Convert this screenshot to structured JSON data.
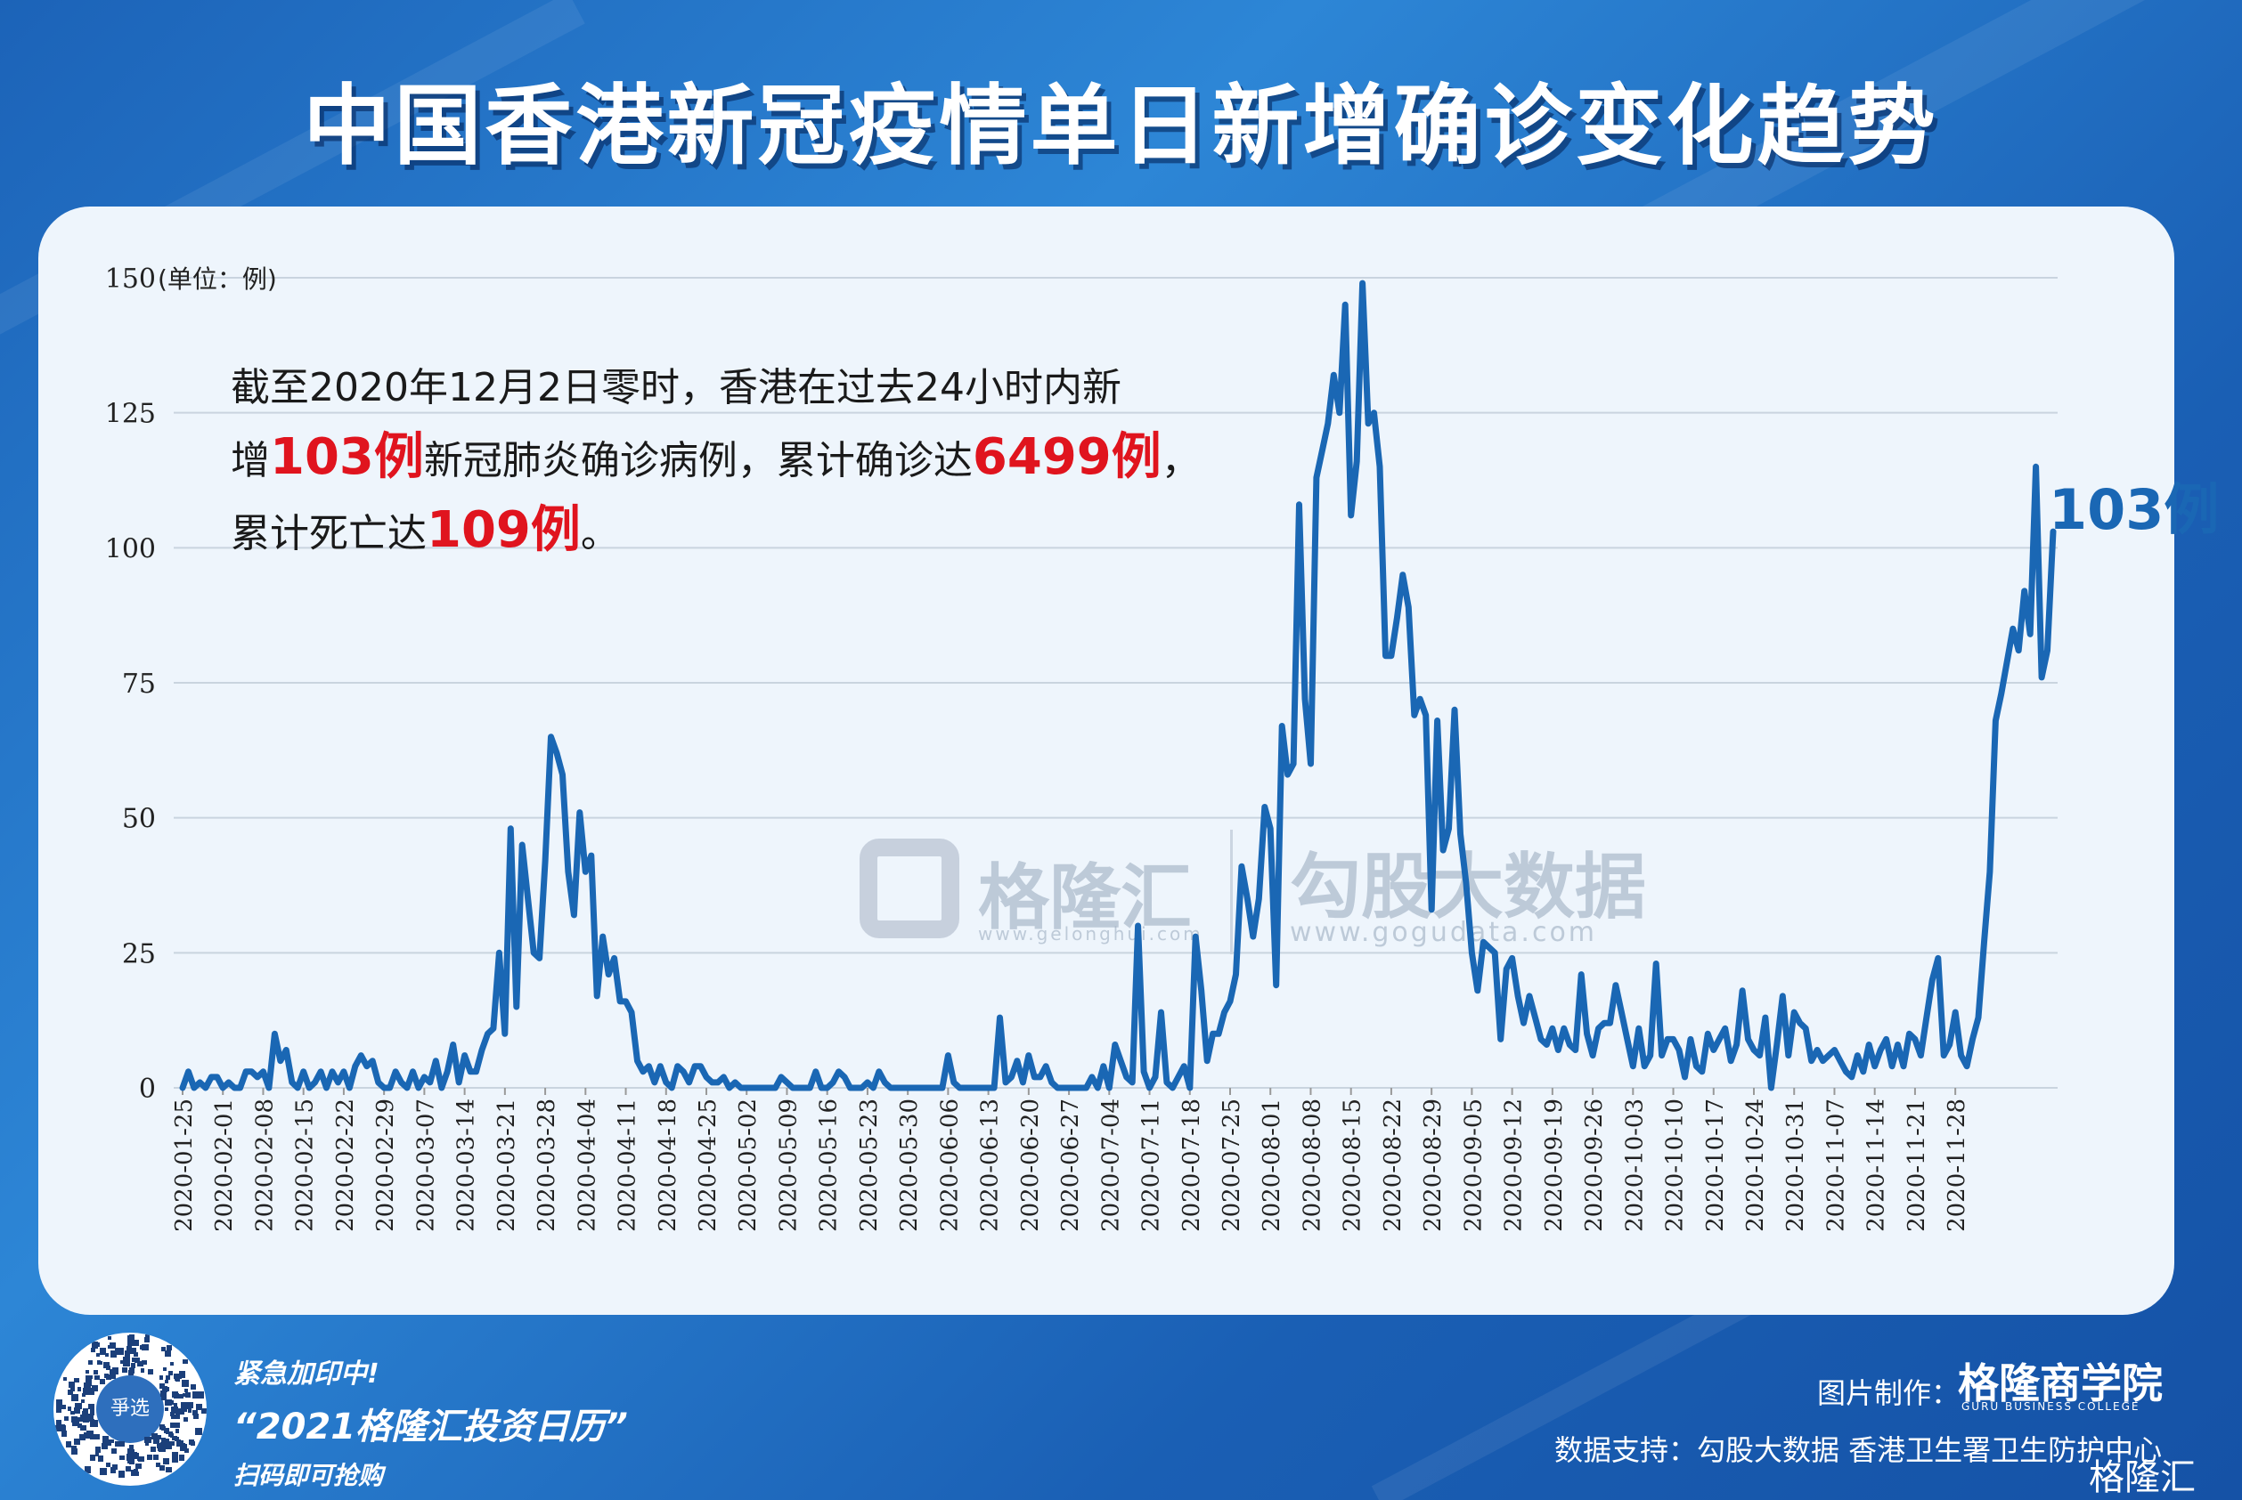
{
  "title": "中国香港新冠疫情单日新增确诊变化趋势",
  "unit_label": "(单位：例)",
  "annotation": {
    "line1": "截至2020年12月2日零时，香港在过去24小时内新",
    "line2_pre": "增",
    "line2_red1": "103例",
    "line2_mid": "新冠肺炎确诊病例，累计确诊达",
    "line2_red2": "6499例",
    "line2_post": "，",
    "line3_pre": "累计死亡达",
    "line3_red": "109例",
    "line3_post": "。"
  },
  "end_label": "103例",
  "watermark": {
    "brand1": "格隆汇",
    "brand1_url": "www.gelonghui.com",
    "brand2": "勾股大数据",
    "brand2_url": "www.gogudata.com"
  },
  "footer": {
    "promo_line1": "紧急加印中!",
    "promo_line2": "“2021格隆汇投资日历”",
    "promo_line3": "扫码即可抢购",
    "qr_center": "爭选",
    "credit_label": "图片制作：",
    "credit_logo": "格隆商学院",
    "credit_sub": "GURU BUSINESS COLLEGE",
    "source": "数据支持：勾股大数据  香港卫生署卫生防护中心",
    "corner_logo": "格隆汇"
  },
  "colors": {
    "line": "#1a67b4",
    "red": "#e0141e",
    "background": "#2d86d6",
    "panel": "#eef5fc"
  },
  "chart_data": {
    "type": "line",
    "title": "中国香港新冠疫情单日新增确诊变化趋势",
    "ylabel": "(单位：例)",
    "ylim": [
      0,
      150
    ],
    "yticks": [
      0,
      25,
      50,
      75,
      100,
      125,
      150
    ],
    "grid": true,
    "x_start": "2020-01-25",
    "x_end": "2020-12-01",
    "xtick_labels": [
      "2020-01-25",
      "2020-02-01",
      "2020-02-08",
      "2020-02-15",
      "2020-02-22",
      "2020-02-29",
      "2020-03-07",
      "2020-03-14",
      "2020-03-21",
      "2020-03-28",
      "2020-04-04",
      "2020-04-11",
      "2020-04-18",
      "2020-04-25",
      "2020-05-02",
      "2020-05-09",
      "2020-05-16",
      "2020-05-23",
      "2020-05-30",
      "2020-06-06",
      "2020-06-13",
      "2020-06-20",
      "2020-06-27",
      "2020-07-04",
      "2020-07-11",
      "2020-07-18",
      "2020-07-25",
      "2020-08-01",
      "2020-08-08",
      "2020-08-15",
      "2020-08-22",
      "2020-08-29",
      "2020-09-05",
      "2020-09-12",
      "2020-09-19",
      "2020-09-26",
      "2020-10-03",
      "2020-10-10",
      "2020-10-17",
      "2020-10-24",
      "2020-10-31",
      "2020-11-07",
      "2020-11-14",
      "2020-11-21",
      "2020-11-28"
    ],
    "series": [
      {
        "values": [
          0,
          3,
          0,
          1,
          0,
          2,
          2,
          0,
          1,
          0,
          0,
          3,
          3,
          2,
          3,
          0,
          10,
          5,
          7,
          1,
          0,
          3,
          0,
          1,
          3,
          0,
          3,
          1,
          3,
          0,
          4,
          6,
          4,
          5,
          1,
          0,
          0,
          3,
          1,
          0,
          3,
          0,
          2,
          1,
          5,
          0,
          3,
          8,
          1,
          6,
          3,
          3,
          7,
          10,
          11,
          25,
          10,
          48,
          15,
          45,
          35,
          25,
          24,
          42,
          65,
          62,
          58,
          40,
          32,
          51,
          40,
          43,
          17,
          28,
          21,
          24,
          16,
          16,
          14,
          5,
          3,
          4,
          1,
          4,
          1,
          0,
          4,
          3,
          1,
          4,
          4,
          2,
          1,
          1,
          2,
          0,
          1,
          0,
          0,
          0,
          0,
          0,
          0,
          0,
          2,
          1,
          0,
          0,
          0,
          0,
          3,
          0,
          0,
          1,
          3,
          2,
          0,
          0,
          0,
          1,
          0,
          3,
          1,
          0,
          0,
          0,
          0,
          0,
          0,
          0,
          0,
          0,
          0,
          6,
          1,
          0,
          0,
          0,
          0,
          0,
          0,
          0,
          13,
          1,
          2,
          5,
          1,
          6,
          2,
          2,
          4,
          1,
          0,
          0,
          0,
          0,
          0,
          0,
          2,
          0,
          4,
          0,
          8,
          5,
          2,
          1,
          30,
          3,
          0,
          2,
          14,
          1,
          0,
          2,
          4,
          0,
          28,
          18,
          5,
          10,
          10,
          14,
          16,
          21,
          41,
          35,
          28,
          35,
          52,
          48,
          19,
          67,
          58,
          60,
          108,
          72,
          60,
          113,
          118,
          123,
          132,
          125,
          145,
          106,
          116,
          149,
          123,
          125,
          115,
          80,
          80,
          87,
          95,
          89,
          69,
          72,
          69,
          33,
          68,
          44,
          48,
          70,
          47,
          38,
          25,
          18,
          27,
          26,
          25,
          9,
          22,
          24,
          17,
          12,
          17,
          13,
          9,
          8,
          11,
          7,
          11,
          8,
          7,
          21,
          10,
          6,
          11,
          12,
          12,
          19,
          14,
          9,
          4,
          11,
          4,
          6,
          23,
          6,
          9,
          9,
          7,
          2,
          9,
          4,
          3,
          10,
          7,
          9,
          11,
          5,
          8,
          18,
          9,
          7,
          6,
          13,
          0,
          8,
          17,
          6,
          14,
          12,
          11,
          5,
          7,
          5,
          6,
          7,
          5,
          3,
          2,
          6,
          3,
          8,
          4,
          7,
          9,
          4,
          8,
          4,
          10,
          9,
          6,
          13,
          20,
          24,
          6,
          8,
          14,
          6,
          4,
          9,
          13,
          27,
          40,
          68,
          73,
          79,
          85,
          81,
          92,
          84,
          115,
          76,
          81,
          103
        ]
      }
    ]
  }
}
